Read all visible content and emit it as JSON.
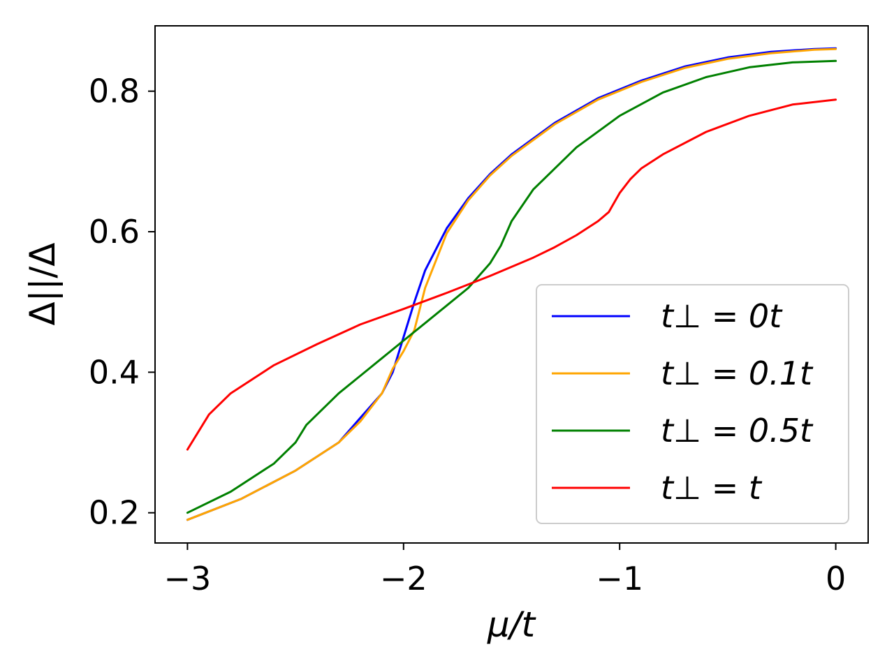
{
  "chart_data": {
    "type": "line",
    "xlabel": "μ/t",
    "ylabel": "Δ||/Δ",
    "xlim": [
      -3.15,
      0.15
    ],
    "ylim": [
      0.157,
      0.893
    ],
    "x_ticks": [
      {
        "value": -3,
        "label": "−3"
      },
      {
        "value": -2,
        "label": "−2"
      },
      {
        "value": -1,
        "label": "−1"
      },
      {
        "value": 0,
        "label": "0"
      }
    ],
    "y_ticks": [
      {
        "value": 0.2,
        "label": "0.2"
      },
      {
        "value": 0.4,
        "label": "0.4"
      },
      {
        "value": 0.6,
        "label": "0.6"
      },
      {
        "value": 0.8,
        "label": "0.8"
      }
    ],
    "grid": false,
    "legend_position": "lower-right",
    "series": [
      {
        "name": "t⊥ = 0t",
        "color": "#0000ff",
        "x": [
          -3.0,
          -2.75,
          -2.5,
          -2.3,
          -2.2,
          -2.1,
          -2.05,
          -2.0,
          -1.95,
          -1.9,
          -1.8,
          -1.7,
          -1.6,
          -1.5,
          -1.3,
          -1.1,
          -0.9,
          -0.7,
          -0.5,
          -0.3,
          -0.1,
          0.0
        ],
        "y": [
          0.19,
          0.22,
          0.26,
          0.3,
          0.335,
          0.37,
          0.4,
          0.45,
          0.5,
          0.545,
          0.605,
          0.648,
          0.682,
          0.71,
          0.755,
          0.79,
          0.815,
          0.835,
          0.848,
          0.856,
          0.86,
          0.861
        ]
      },
      {
        "name": "t⊥ = 0.1t",
        "color": "#ffa500",
        "x": [
          -3.0,
          -2.75,
          -2.5,
          -2.3,
          -2.2,
          -2.1,
          -2.05,
          -2.0,
          -1.95,
          -1.9,
          -1.8,
          -1.7,
          -1.6,
          -1.5,
          -1.3,
          -1.1,
          -0.9,
          -0.7,
          -0.5,
          -0.3,
          -0.1,
          0.0
        ],
        "y": [
          0.19,
          0.22,
          0.26,
          0.3,
          0.33,
          0.37,
          0.405,
          0.43,
          0.46,
          0.52,
          0.598,
          0.645,
          0.68,
          0.708,
          0.753,
          0.788,
          0.813,
          0.833,
          0.846,
          0.854,
          0.859,
          0.86
        ]
      },
      {
        "name": "t⊥ = 0.5t",
        "color": "#008000",
        "x": [
          -3.0,
          -2.8,
          -2.6,
          -2.5,
          -2.45,
          -2.3,
          -2.1,
          -2.0,
          -1.9,
          -1.8,
          -1.7,
          -1.6,
          -1.55,
          -1.5,
          -1.4,
          -1.2,
          -1.0,
          -0.8,
          -0.6,
          -0.4,
          -0.2,
          0.0
        ],
        "y": [
          0.2,
          0.23,
          0.27,
          0.3,
          0.325,
          0.37,
          0.42,
          0.445,
          0.47,
          0.495,
          0.52,
          0.555,
          0.58,
          0.615,
          0.66,
          0.72,
          0.765,
          0.798,
          0.82,
          0.834,
          0.841,
          0.843
        ]
      },
      {
        "name": "t⊥ = t",
        "color": "#ff0000",
        "x": [
          -3.0,
          -2.9,
          -2.8,
          -2.6,
          -2.4,
          -2.2,
          -2.0,
          -1.8,
          -1.6,
          -1.4,
          -1.3,
          -1.2,
          -1.1,
          -1.05,
          -1.0,
          -0.95,
          -0.9,
          -0.8,
          -0.6,
          -0.4,
          -0.2,
          0.0
        ],
        "y": [
          0.29,
          0.34,
          0.37,
          0.41,
          0.44,
          0.468,
          0.49,
          0.513,
          0.537,
          0.563,
          0.578,
          0.595,
          0.615,
          0.628,
          0.655,
          0.675,
          0.69,
          0.71,
          0.742,
          0.765,
          0.781,
          0.788
        ]
      }
    ]
  }
}
